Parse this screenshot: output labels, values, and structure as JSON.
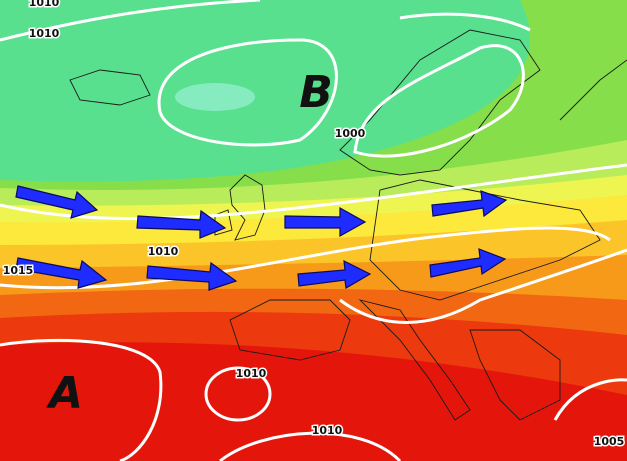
{
  "pressure_centers": [
    {
      "label": "B"
    },
    {
      "label": "A"
    }
  ],
  "isobar_labels": [
    "1010",
    "1010",
    "1000",
    "1010",
    "1015",
    "1010",
    "1010",
    "1005"
  ]
}
